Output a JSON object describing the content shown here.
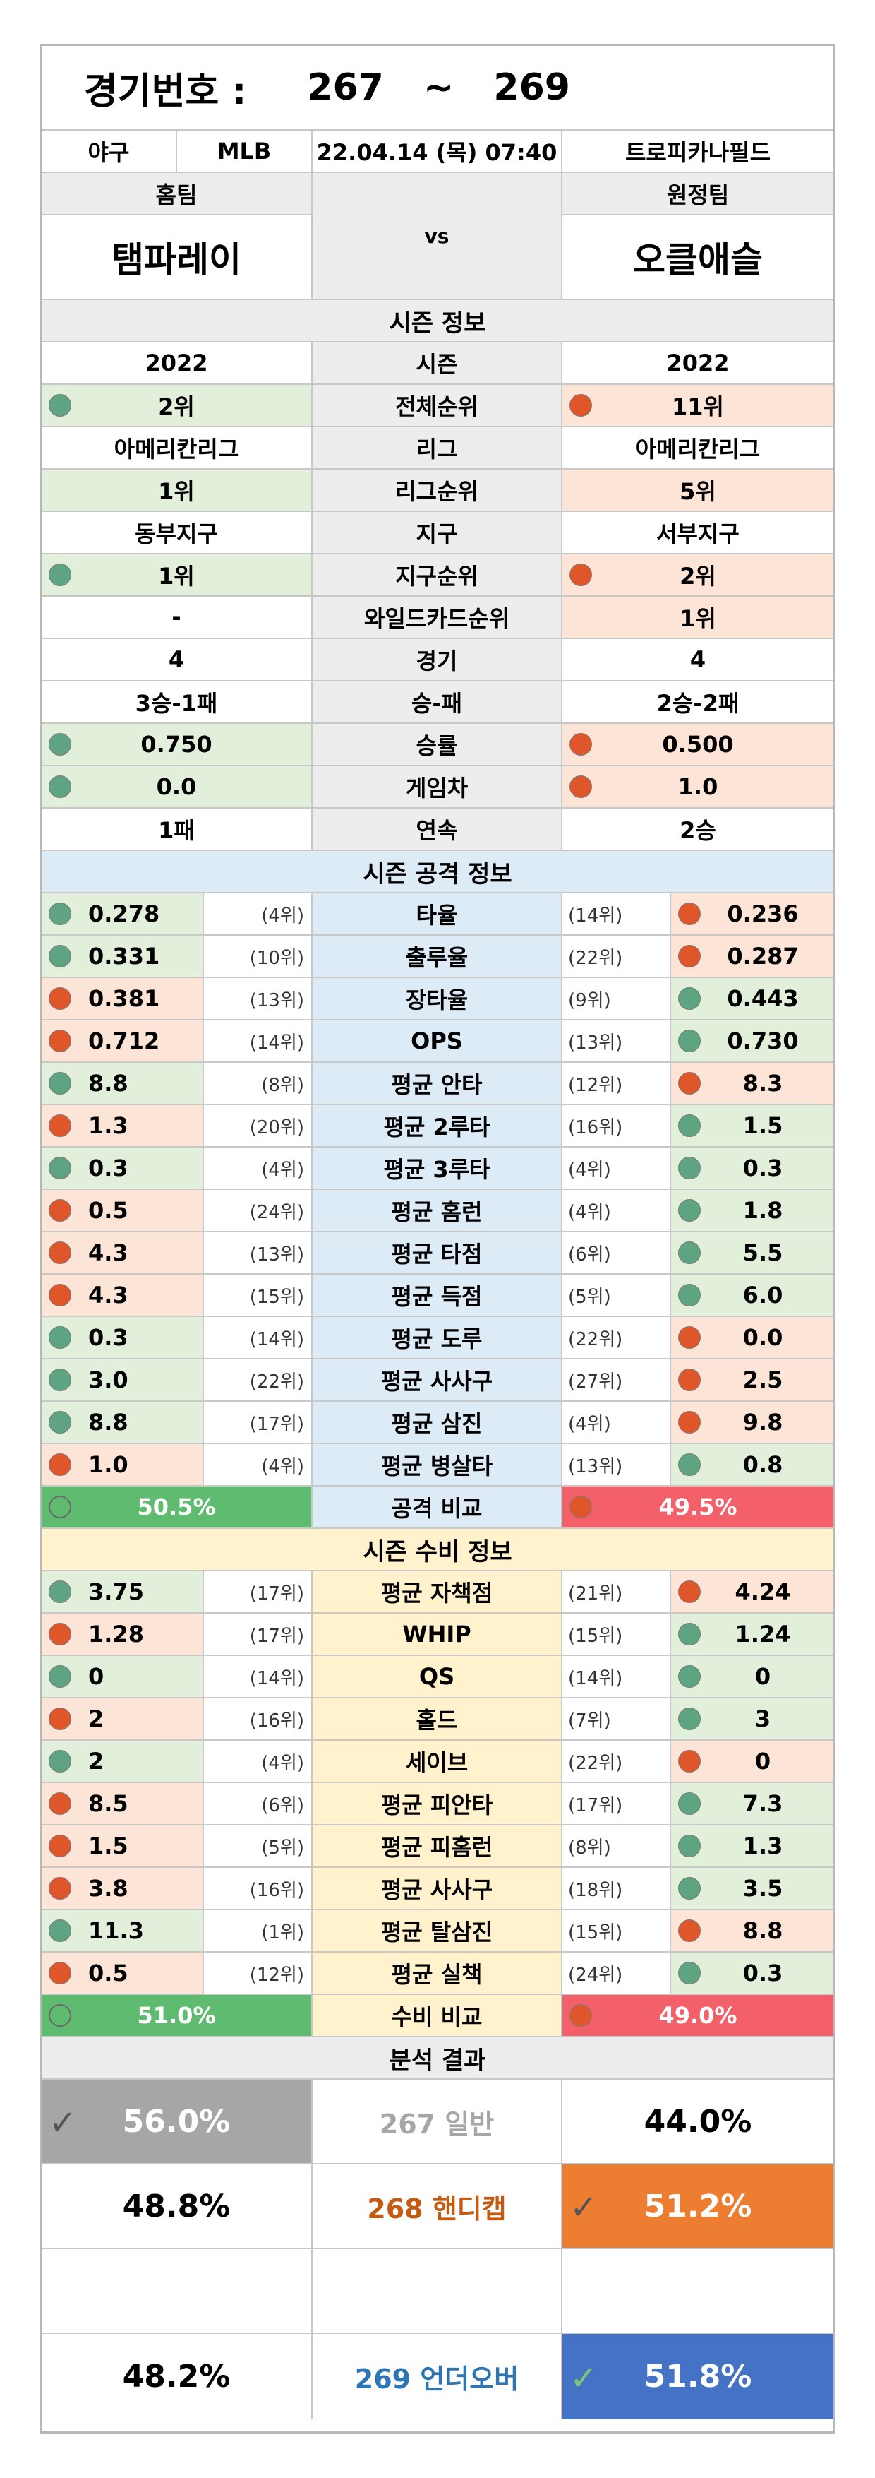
{
  "header": {
    "label": "경기번호 :",
    "from": "267",
    "tilde": "~",
    "to": "269"
  },
  "match": {
    "sport": "야구",
    "league": "MLB",
    "datetime": "22.04.14 (목) 07:40",
    "stadium": "트로피카나필드"
  },
  "teams": {
    "home_label": "홈팀",
    "away_label": "원정팀",
    "home": "탬파레이",
    "away": "오클애슬",
    "vs": "vs"
  },
  "season": {
    "title": "시즌 정보",
    "rows": [
      {
        "label": "시즌",
        "home": "2022",
        "away": "2022",
        "hdot": "",
        "adot": ""
      },
      {
        "label": "전체순위",
        "home": "2위",
        "away": "11위",
        "hdot": "g",
        "adot": "o"
      },
      {
        "label": "리그",
        "home": "아메리칸리그",
        "away": "아메리칸리그",
        "hdot": "",
        "adot": ""
      },
      {
        "label": "리그순위",
        "home": "1위",
        "away": "5위",
        "hdot": "",
        "adot": ""
      },
      {
        "label": "지구",
        "home": "동부지구",
        "away": "서부지구",
        "hdot": "",
        "adot": ""
      },
      {
        "label": "지구순위",
        "home": "1위",
        "away": "2위",
        "hdot": "g",
        "adot": "o"
      },
      {
        "label": "와일드카드순위",
        "home": "-",
        "away": "1위",
        "hdot": "",
        "adot": ""
      },
      {
        "label": "경기",
        "home": "4",
        "away": "4",
        "hdot": "",
        "adot": ""
      },
      {
        "label": "승-패",
        "home": "3승-1패",
        "away": "2승-2패",
        "hdot": "",
        "adot": ""
      },
      {
        "label": "승률",
        "home": "0.750",
        "away": "0.500",
        "hdot": "g",
        "adot": "o"
      },
      {
        "label": "게임차",
        "home": "0.0",
        "away": "1.0",
        "hdot": "g",
        "adot": "o"
      },
      {
        "label": "연속",
        "home": "1패",
        "away": "2승",
        "hdot": "",
        "adot": ""
      }
    ]
  },
  "attack": {
    "title": "시즌 공격 정보",
    "rows": [
      {
        "label": "타율",
        "hv": "0.278",
        "hr": "(4위)",
        "ar": "(14위)",
        "av": "0.236",
        "h": "g",
        "a": "o"
      },
      {
        "label": "출루율",
        "hv": "0.331",
        "hr": "(10위)",
        "ar": "(22위)",
        "av": "0.287",
        "h": "g",
        "a": "o"
      },
      {
        "label": "장타율",
        "hv": "0.381",
        "hr": "(13위)",
        "ar": "(9위)",
        "av": "0.443",
        "h": "o",
        "a": "g"
      },
      {
        "label": "OPS",
        "hv": "0.712",
        "hr": "(14위)",
        "ar": "(13위)",
        "av": "0.730",
        "h": "o",
        "a": "g"
      },
      {
        "label": "평균 안타",
        "hv": "8.8",
        "hr": "(8위)",
        "ar": "(12위)",
        "av": "8.3",
        "h": "g",
        "a": "o"
      },
      {
        "label": "평균 2루타",
        "hv": "1.3",
        "hr": "(20위)",
        "ar": "(16위)",
        "av": "1.5",
        "h": "o",
        "a": "g"
      },
      {
        "label": "평균 3루타",
        "hv": "0.3",
        "hr": "(4위)",
        "ar": "(4위)",
        "av": "0.3",
        "h": "g",
        "a": "g"
      },
      {
        "label": "평균 홈런",
        "hv": "0.5",
        "hr": "(24위)",
        "ar": "(4위)",
        "av": "1.8",
        "h": "o",
        "a": "g"
      },
      {
        "label": "평균 타점",
        "hv": "4.3",
        "hr": "(13위)",
        "ar": "(6위)",
        "av": "5.5",
        "h": "o",
        "a": "g"
      },
      {
        "label": "평균 득점",
        "hv": "4.3",
        "hr": "(15위)",
        "ar": "(5위)",
        "av": "6.0",
        "h": "o",
        "a": "g"
      },
      {
        "label": "평균 도루",
        "hv": "0.3",
        "hr": "(14위)",
        "ar": "(22위)",
        "av": "0.0",
        "h": "g",
        "a": "o"
      },
      {
        "label": "평균 사사구",
        "hv": "3.0",
        "hr": "(22위)",
        "ar": "(27위)",
        "av": "2.5",
        "h": "g",
        "a": "o"
      },
      {
        "label": "평균 삼진",
        "hv": "8.8",
        "hr": "(17위)",
        "ar": "(4위)",
        "av": "9.8",
        "h": "g",
        "a": "o"
      },
      {
        "label": "평균 병살타",
        "hv": "1.0",
        "hr": "(4위)",
        "ar": "(13위)",
        "av": "0.8",
        "h": "o",
        "a": "g"
      }
    ],
    "compare": {
      "label": "공격 비교",
      "home": "50.5%",
      "away": "49.5%"
    }
  },
  "defense": {
    "title": "시즌 수비 정보",
    "rows": [
      {
        "label": "평균 자책점",
        "hv": "3.75",
        "hr": "(17위)",
        "ar": "(21위)",
        "av": "4.24",
        "h": "g",
        "a": "o"
      },
      {
        "label": "WHIP",
        "hv": "1.28",
        "hr": "(17위)",
        "ar": "(15위)",
        "av": "1.24",
        "h": "o",
        "a": "g"
      },
      {
        "label": "QS",
        "hv": "0",
        "hr": "(14위)",
        "ar": "(14위)",
        "av": "0",
        "h": "g",
        "a": "g"
      },
      {
        "label": "홀드",
        "hv": "2",
        "hr": "(16위)",
        "ar": "(7위)",
        "av": "3",
        "h": "o",
        "a": "g"
      },
      {
        "label": "세이브",
        "hv": "2",
        "hr": "(4위)",
        "ar": "(22위)",
        "av": "0",
        "h": "g",
        "a": "o"
      },
      {
        "label": "평균 피안타",
        "hv": "8.5",
        "hr": "(6위)",
        "ar": "(17위)",
        "av": "7.3",
        "h": "o",
        "a": "g"
      },
      {
        "label": "평균 피홈런",
        "hv": "1.5",
        "hr": "(5위)",
        "ar": "(8위)",
        "av": "1.3",
        "h": "o",
        "a": "g"
      },
      {
        "label": "평균 사사구",
        "hv": "3.8",
        "hr": "(16위)",
        "ar": "(18위)",
        "av": "3.5",
        "h": "o",
        "a": "g"
      },
      {
        "label": "평균 탈삼진",
        "hv": "11.3",
        "hr": "(1위)",
        "ar": "(15위)",
        "av": "8.8",
        "h": "g",
        "a": "o"
      },
      {
        "label": "평균 실책",
        "hv": "0.5",
        "hr": "(12위)",
        "ar": "(24위)",
        "av": "0.3",
        "h": "o",
        "a": "g"
      }
    ],
    "compare": {
      "label": "수비 비교",
      "home": "51.0%",
      "away": "49.0%"
    }
  },
  "analysis": {
    "title": "분석 결과",
    "general": {
      "home": "56.0%",
      "label": "267 일반",
      "away": "44.0%"
    },
    "handicap": {
      "home": "48.8%",
      "label": "268 핸디캡",
      "away": "51.2%"
    },
    "overunder": {
      "home": "48.2%",
      "label": "269 언더오버",
      "away": "51.8%"
    }
  },
  "colors": {
    "green_fill": "#e2efda",
    "orange_fill": "#fce4d6",
    "attack_bg": "#ddebf7",
    "defense_bg": "#fff2cc",
    "home_bar": "#5fbb6f",
    "away_bar": "#f4606a",
    "handicap": "#ed7d31",
    "overunder": "#4472c4",
    "general": "#a6a6a6"
  }
}
